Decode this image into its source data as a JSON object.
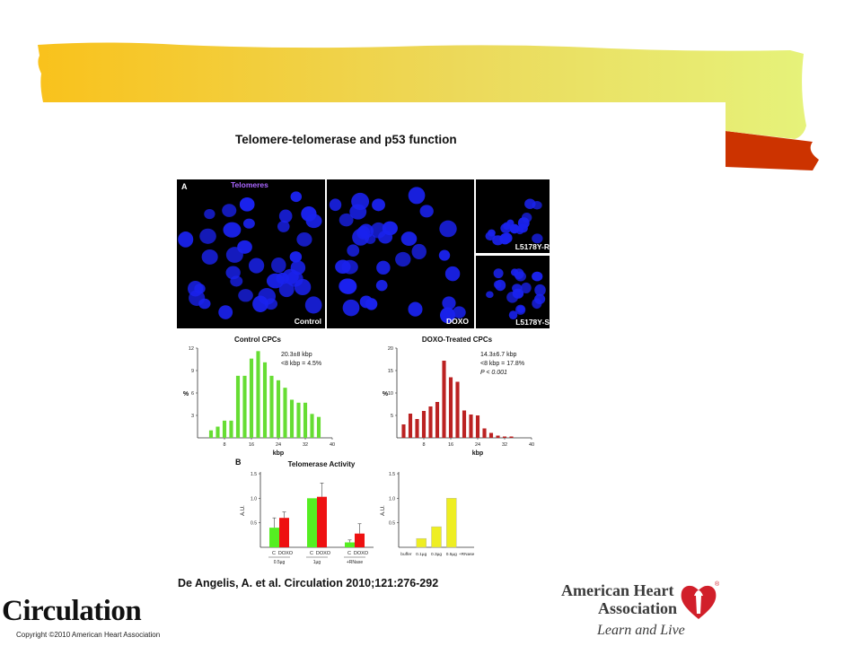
{
  "slide": {
    "title": "Telomere-telomerase and p53 function",
    "citation": "De Angelis, A. et al. Circulation 2010;121:276-292",
    "journal": "Circulation",
    "copyright": "Copyright ©2010 American Heart Association",
    "aha": {
      "line1": "American Heart",
      "line2": "Association",
      "line3": "Learn and Live"
    },
    "banner_colors": {
      "yellow_left": "#f9c21c",
      "yellow_right": "#e6f27a",
      "red_tab": "#cc3300"
    }
  },
  "figure": {
    "panel_a": {
      "letter": "A",
      "telomeres_label": "Telomeres",
      "images": [
        {
          "label": "Control"
        },
        {
          "label": "DOXO"
        },
        {
          "label": "L5178Y-R"
        },
        {
          "label": "L5178Y-S"
        }
      ]
    },
    "panel_b": {
      "letter": "B"
    }
  },
  "chart_data": [
    {
      "type": "bar",
      "title": "Control CPCs",
      "xlabel": "kbp",
      "ylabel": "%",
      "color": "#66dd33",
      "x": [
        4,
        6,
        8,
        10,
        12,
        14,
        16,
        18,
        20,
        22,
        24,
        26,
        28,
        30,
        32,
        34,
        36
      ],
      "values": [
        1,
        1.5,
        2.3,
        2.3,
        8.3,
        8.3,
        10.6,
        11.6,
        10.1,
        8.3,
        7.7,
        6.7,
        5.1,
        4.7,
        4.7,
        3.2,
        2.8
      ],
      "x_ticks": [
        "8",
        "16",
        "24",
        "32",
        "40"
      ],
      "y_ticks": [
        "3",
        "6",
        "9",
        "12"
      ],
      "xlim": [
        0,
        40
      ],
      "ylim": [
        0,
        12
      ],
      "annotations": [
        "20.3±8 kbp",
        "<8 kbp = 4.5%"
      ]
    },
    {
      "type": "bar",
      "title": "DOXO-Treated CPCs",
      "xlabel": "kbp",
      "ylabel": "%",
      "color": "#bb2222",
      "x": [
        2,
        4,
        6,
        8,
        10,
        12,
        14,
        16,
        18,
        20,
        22,
        24,
        26,
        28,
        30,
        32,
        34
      ],
      "values": [
        3,
        5.4,
        4.2,
        6,
        7,
        8,
        17.2,
        13.5,
        12.5,
        6.1,
        5.2,
        5,
        2.1,
        1.1,
        0.5,
        0.3,
        0.3
      ],
      "x_ticks": [
        "8",
        "16",
        "24",
        "32",
        "40"
      ],
      "y_ticks": [
        "5",
        "10",
        "15",
        "20"
      ],
      "xlim": [
        0,
        40
      ],
      "ylim": [
        0,
        20
      ],
      "annotations": [
        "14.3±6.7 kbp",
        "<8 kbp = 17.8%",
        "P < 0.001"
      ]
    },
    {
      "type": "bar",
      "title": "Telomerase Activity",
      "ylabel": "A.U.",
      "categories": [
        "0.5µg",
        "1µg",
        "+RNase"
      ],
      "series": [
        {
          "name": "C",
          "color": "#55ee22",
          "values": [
            0.4,
            1.0,
            0.1
          ],
          "errors": [
            0.2,
            0,
            0.05
          ]
        },
        {
          "name": "DOXO",
          "color": "#ee1111",
          "values": [
            0.6,
            1.03,
            0.28
          ],
          "errors": [
            0.12,
            0.28,
            0.2
          ]
        }
      ],
      "series_labels": [
        [
          "C",
          "DOXO"
        ],
        [
          "C",
          "DOXO"
        ],
        [
          "C",
          "DOXO"
        ]
      ],
      "y_ticks": [
        "0.5",
        "1.0",
        "1.5"
      ],
      "ylim": [
        0,
        1.5
      ]
    },
    {
      "type": "bar",
      "ylabel": "A.U.",
      "categories": [
        "buffer",
        "0.1µg",
        "0.3µg",
        "0.5µg",
        "+RNase"
      ],
      "color": "#eeee22",
      "values": [
        0,
        0.18,
        0.42,
        1.0,
        0
      ],
      "y_ticks": [
        "0.5",
        "1.0",
        "1.5"
      ],
      "ylim": [
        0,
        1.5
      ]
    }
  ]
}
